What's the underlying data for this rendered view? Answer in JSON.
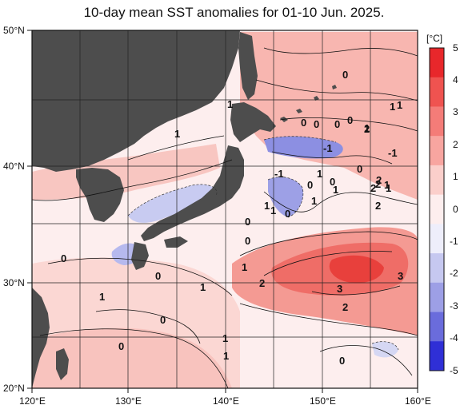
{
  "title": "10-day mean SST anomalies for 01-10 Jun. 2025.",
  "map": {
    "lat_labels": [
      "50°N",
      "40°N",
      "30°N",
      "20°N"
    ],
    "lon_labels": [
      "120°E",
      "130°E",
      "140°E",
      "150°E",
      "160°E"
    ],
    "contour_labels": [
      "0",
      "1",
      "1",
      "0",
      "1",
      "0",
      "1",
      "0",
      "0",
      "1",
      "0",
      "0",
      "1",
      "1",
      "1",
      "0",
      "1",
      "2",
      "0",
      "1",
      "0",
      "2",
      "1",
      "2",
      "1",
      "2",
      "3",
      "1",
      "0",
      "3",
      "2",
      "0",
      "0",
      "1",
      "1",
      "0",
      "0",
      "1",
      "2",
      "1",
      "-1",
      "-1",
      "0",
      "-1",
      "2"
    ]
  },
  "colorbar": {
    "unit": "[°C]",
    "ticks": [
      "5",
      "4",
      "3",
      "2",
      "1",
      "0",
      "-1",
      "-2",
      "-3",
      "-4",
      "-5"
    ],
    "colors": [
      "#e8272b",
      "#ef5350",
      "#f47c78",
      "#f8a5a0",
      "#fbcfcb",
      "#fdeeee",
      "#eeeefb",
      "#c6c8f0",
      "#9d9fe6",
      "#6a6cdc",
      "#2f2fd6"
    ]
  }
}
